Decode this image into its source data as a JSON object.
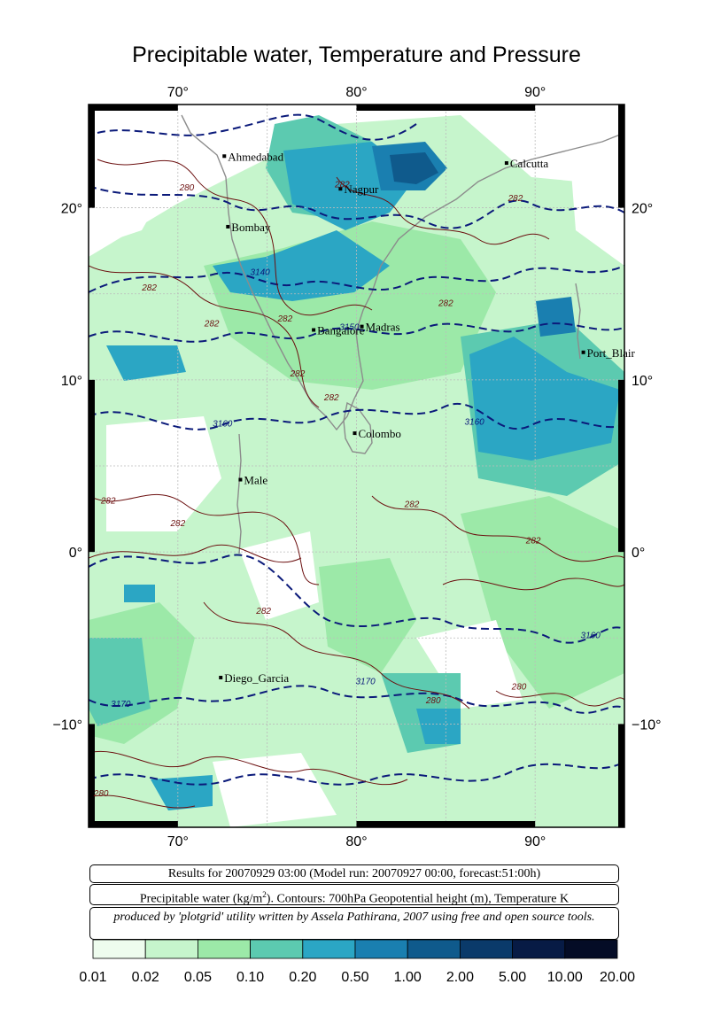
{
  "title": "Precipitable water, Temperature and Pressure",
  "axes": {
    "x_ticks": [
      "70°",
      "80°",
      "90°"
    ],
    "y_ticks": [
      "20°",
      "10°",
      "0°",
      "−10°"
    ]
  },
  "map_extent": {
    "lon": [
      65,
      95
    ],
    "lat": [
      -16,
      26
    ]
  },
  "cities": [
    {
      "name": "Ahmedabad",
      "lon": 72.6,
      "lat": 23.0
    },
    {
      "name": "Nagpur",
      "lon": 79.1,
      "lat": 21.1
    },
    {
      "name": "Calcutta",
      "lon": 88.4,
      "lat": 22.6
    },
    {
      "name": "Bombay",
      "lon": 72.8,
      "lat": 18.9
    },
    {
      "name": "Bangalore",
      "lon": 77.6,
      "lat": 12.9
    },
    {
      "name": "Madras",
      "lon": 80.3,
      "lat": 13.1
    },
    {
      "name": "Port_Blair",
      "lon": 92.7,
      "lat": 11.6
    },
    {
      "name": "Colombo",
      "lon": 79.9,
      "lat": 6.9
    },
    {
      "name": "Male",
      "lon": 73.5,
      "lat": 4.2
    },
    {
      "name": "Diego_Garcia",
      "lon": 72.4,
      "lat": -7.3
    }
  ],
  "contour_labels": {
    "temperature": [
      {
        "text": "280",
        "lon": 70.5,
        "lat": 21.0
      },
      {
        "text": "282",
        "lon": 79.2,
        "lat": 21.2
      },
      {
        "text": "282",
        "lon": 88.9,
        "lat": 20.4
      },
      {
        "text": "282",
        "lon": 68.4,
        "lat": 15.2
      },
      {
        "text": "282",
        "lon": 71.9,
        "lat": 13.1
      },
      {
        "text": "282",
        "lon": 76.0,
        "lat": 13.4
      },
      {
        "text": "282",
        "lon": 85.0,
        "lat": 14.3
      },
      {
        "text": "282",
        "lon": 76.7,
        "lat": 10.2
      },
      {
        "text": "282",
        "lon": 78.6,
        "lat": 8.8
      },
      {
        "text": "282",
        "lon": 66.1,
        "lat": 2.8
      },
      {
        "text": "282",
        "lon": 83.1,
        "lat": 2.6
      },
      {
        "text": "282",
        "lon": 70.0,
        "lat": 1.5
      },
      {
        "text": "282",
        "lon": 89.9,
        "lat": 0.5
      },
      {
        "text": "282",
        "lon": 74.8,
        "lat": -3.6
      },
      {
        "text": "280",
        "lon": 84.3,
        "lat": -8.8
      },
      {
        "text": "280",
        "lon": 89.1,
        "lat": -8.0
      },
      {
        "text": "280",
        "lon": 65.7,
        "lat": -14.2
      }
    ],
    "geopotential": [
      {
        "text": "3140",
        "lon": 74.6,
        "lat": 16.1
      },
      {
        "text": "3150",
        "lon": 79.6,
        "lat": 12.9
      },
      {
        "text": "3160",
        "lon": 72.5,
        "lat": 7.3
      },
      {
        "text": "3160",
        "lon": 86.6,
        "lat": 7.4
      },
      {
        "text": "3160",
        "lon": 93.1,
        "lat": -5.0
      },
      {
        "text": "3170",
        "lon": 80.5,
        "lat": -7.7
      },
      {
        "text": "3170",
        "lon": 66.8,
        "lat": -9.0
      }
    ]
  },
  "info": {
    "line1": "Results for 20070929 03:00 (Model run: 20070927 00:00, forecast:51:00h)",
    "line2_prefix": "Precipitable water (kg/m",
    "line2_sup": "2",
    "line2_suffix": ").  Contours: 700hPa Geopotential height (m), Temperature K",
    "line3": "produced by 'plotgrid' utility written by Assela Pathirana, 2007 using free and open source tools."
  },
  "legend": {
    "labels": [
      "0.01",
      "0.02",
      "0.05",
      "0.10",
      "0.20",
      "0.50",
      "1.00",
      "2.00",
      "5.00",
      "10.00",
      "20.00"
    ],
    "colors": [
      "#eefcee",
      "#c6f5cc",
      "#9ce9a8",
      "#5ccab0",
      "#2ba6c4",
      "#1a7fb0",
      "#0f5a8c",
      "#0a3a6a",
      "#071b45",
      "#040c26",
      "#020410"
    ]
  },
  "colors": {
    "temperature_contour": "#6b0f0f",
    "geopotential_contour": "#0b1a7a",
    "coastline": "#8c8c8c",
    "grid": "#bbbbbb"
  }
}
